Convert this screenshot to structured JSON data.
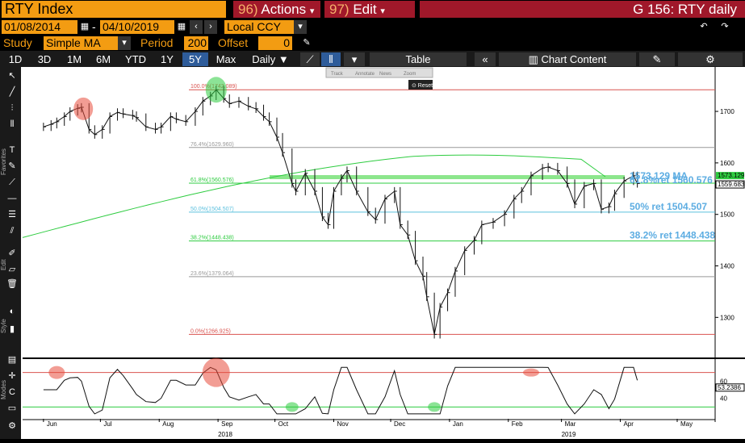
{
  "header": {
    "ticker": "RTY Index",
    "actions_num": "96)",
    "actions_label": "Actions",
    "edit_num": "97)",
    "edit_label": "Edit",
    "page_label": "G 156: RTY daily"
  },
  "dates": {
    "start": "01/08/2014",
    "end": "04/10/2019",
    "currency": "Local CCY"
  },
  "study": {
    "label": "Study",
    "value": "Simple MA",
    "period_label": "Period",
    "period": "200",
    "offset_label": "Offset",
    "offset": "0"
  },
  "ranges": [
    "1D",
    "3D",
    "1M",
    "6M",
    "YTD",
    "1Y",
    "5Y",
    "Max"
  ],
  "active_range": "5Y",
  "frequency": "Daily",
  "table_label": "Table",
  "chart_content_label": "Chart Content",
  "mini_toolbar": [
    "Track",
    "Annotate",
    "News",
    "Zoom"
  ],
  "reset_label": "Reset",
  "side_labels": [
    "Favorites",
    "Edit",
    "Style",
    "Modes"
  ],
  "chart_data": {
    "type": "line",
    "subtype": "ohlc-bars",
    "x_ticks": [
      "Jun",
      "Jul",
      "Aug",
      "Sep",
      "Oct",
      "Nov",
      "Dec",
      "Jan",
      "Feb",
      "Mar",
      "Apr",
      "May"
    ],
    "year_labels": [
      {
        "label": "2018",
        "after": "Sep"
      },
      {
        "label": "2019",
        "after": "Mar"
      }
    ],
    "y_ticks": [
      1300,
      1400,
      1500,
      1600,
      1700
    ],
    "ylim": [
      1230,
      1780
    ],
    "grid": false,
    "price": [
      [
        "2018-06-01",
        1670
      ],
      [
        "2018-06-05",
        1675
      ],
      [
        "2018-06-08",
        1680
      ],
      [
        "2018-06-12",
        1690
      ],
      [
        "2018-06-15",
        1700
      ],
      [
        "2018-06-19",
        1706
      ],
      [
        "2018-06-21",
        1708
      ],
      [
        "2018-06-25",
        1665
      ],
      [
        "2018-06-28",
        1655
      ],
      [
        "2018-07-02",
        1665
      ],
      [
        "2018-07-06",
        1690
      ],
      [
        "2018-07-10",
        1698
      ],
      [
        "2018-07-13",
        1695
      ],
      [
        "2018-07-18",
        1692
      ],
      [
        "2018-07-20",
        1688
      ],
      [
        "2018-07-25",
        1670
      ],
      [
        "2018-07-30",
        1665
      ],
      [
        "2018-08-02",
        1670
      ],
      [
        "2018-08-07",
        1690
      ],
      [
        "2018-08-10",
        1685
      ],
      [
        "2018-08-15",
        1680
      ],
      [
        "2018-08-20",
        1700
      ],
      [
        "2018-08-24",
        1720
      ],
      [
        "2018-08-28",
        1730
      ],
      [
        "2018-08-31",
        1742
      ],
      [
        "2018-09-04",
        1725
      ],
      [
        "2018-09-07",
        1715
      ],
      [
        "2018-09-12",
        1720
      ],
      [
        "2018-09-17",
        1710
      ],
      [
        "2018-09-21",
        1705
      ],
      [
        "2018-09-25",
        1690
      ],
      [
        "2018-09-28",
        1680
      ],
      [
        "2018-10-02",
        1650
      ],
      [
        "2018-10-05",
        1620
      ],
      [
        "2018-10-10",
        1560
      ],
      [
        "2018-10-12",
        1545
      ],
      [
        "2018-10-17",
        1580
      ],
      [
        "2018-10-22",
        1545
      ],
      [
        "2018-10-26",
        1495
      ],
      [
        "2018-10-29",
        1480
      ],
      [
        "2018-11-01",
        1545
      ],
      [
        "2018-11-05",
        1570
      ],
      [
        "2018-11-08",
        1585
      ],
      [
        "2018-11-13",
        1545
      ],
      [
        "2018-11-19",
        1505
      ],
      [
        "2018-11-23",
        1490
      ],
      [
        "2018-11-28",
        1530
      ],
      [
        "2018-12-03",
        1545
      ],
      [
        "2018-12-06",
        1480
      ],
      [
        "2018-12-10",
        1460
      ],
      [
        "2018-12-14",
        1410
      ],
      [
        "2018-12-18",
        1380
      ],
      [
        "2018-12-20",
        1340
      ],
      [
        "2018-12-24",
        1267
      ],
      [
        "2018-12-27",
        1320
      ],
      [
        "2018-12-31",
        1348
      ],
      [
        "2019-01-04",
        1390
      ],
      [
        "2019-01-09",
        1430
      ],
      [
        "2019-01-14",
        1450
      ],
      [
        "2019-01-18",
        1480
      ],
      [
        "2019-01-24",
        1485
      ],
      [
        "2019-01-30",
        1500
      ],
      [
        "2019-02-04",
        1530
      ],
      [
        "2019-02-08",
        1545
      ],
      [
        "2019-02-13",
        1575
      ],
      [
        "2019-02-19",
        1590
      ],
      [
        "2019-02-22",
        1592
      ],
      [
        "2019-02-27",
        1585
      ],
      [
        "2019-03-04",
        1560
      ],
      [
        "2019-03-08",
        1520
      ],
      [
        "2019-03-13",
        1555
      ],
      [
        "2019-03-18",
        1560
      ],
      [
        "2019-03-22",
        1510
      ],
      [
        "2019-03-26",
        1515
      ],
      [
        "2019-03-29",
        1540
      ],
      [
        "2019-04-03",
        1565
      ],
      [
        "2019-04-08",
        1575
      ],
      [
        "2019-04-10",
        1560
      ]
    ],
    "ma_label": "1573.129  MA",
    "ma_value": 1573.129,
    "last_price": "1559.683",
    "last_ma": "1573.129",
    "fib_levels": [
      {
        "label": "100.0%(1742.089)",
        "value": 1742.089,
        "color": "#d9534f"
      },
      {
        "label": "76.4%(1629.960)",
        "value": 1629.96,
        "color": "#999999"
      },
      {
        "label": "61.8%(1560.576)",
        "value": 1560.576,
        "color": "#2ecc40"
      },
      {
        "label": "50.0%(1504.507)",
        "value": 1504.507,
        "color": "#5bc0de"
      },
      {
        "label": "38.2%(1448.438)",
        "value": 1448.438,
        "color": "#2ecc40"
      },
      {
        "label": "23.6%(1379.064)",
        "value": 1379.064,
        "color": "#999999"
      },
      {
        "label": "0.0%(1266.925)",
        "value": 1266.925,
        "color": "#d9534f"
      }
    ],
    "annotations": [
      {
        "text": "61.8%ret 1560.576",
        "value": 1560.576
      },
      {
        "text": "50% ret 1504.507",
        "value": 1504.507
      },
      {
        "text": "38.2% ret 1448.438",
        "value": 1448.438
      }
    ],
    "rsi": {
      "y_ticks": [
        40,
        60
      ],
      "last": "53.2386",
      "upper": 70,
      "lower": 30
    }
  }
}
